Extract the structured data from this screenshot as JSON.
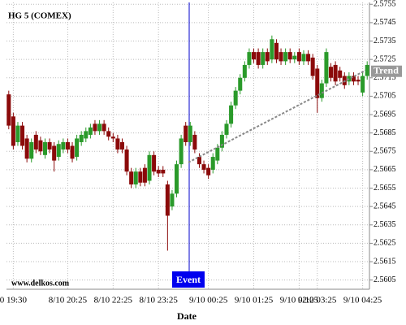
{
  "chart_data": {
    "type": "candlestick",
    "title": "HG 5 (COMEX)",
    "source": "www.delkos.com",
    "x_label": "Date",
    "event": {
      "label": "Event"
    },
    "trend": {
      "label": "Trend",
      "start": 2.5669,
      "end": 2.5719
    },
    "up_color": "#2a9a2a",
    "down_color": "#8b0a0a",
    "grid": true,
    "ylim": [
      2.56,
      2.5756
    ],
    "yticks": [
      2.5605,
      2.5615,
      2.5625,
      2.5635,
      2.5645,
      2.5655,
      2.5665,
      2.5675,
      2.5685,
      2.5695,
      2.5705,
      2.5715,
      2.5725,
      2.5735,
      2.5745,
      2.5755
    ],
    "categories": [
      null,
      "0 19:30",
      null,
      null,
      null,
      null,
      null,
      null,
      null,
      null,
      null,
      null,
      null,
      "8/10 20:25",
      null,
      null,
      null,
      null,
      null,
      null,
      null,
      null,
      null,
      "8/10 22:25",
      null,
      null,
      null,
      null,
      null,
      null,
      null,
      null,
      null,
      "8/10 23:25",
      null,
      null,
      null,
      null,
      null,
      null,
      null,
      null,
      null,
      null,
      "9/10 00:25",
      null,
      null,
      null,
      null,
      null,
      null,
      null,
      null,
      null,
      "9/10 01:25",
      null,
      null,
      null,
      null,
      null,
      null,
      null,
      null,
      null,
      "9/10 02:25",
      null,
      null,
      null,
      "9/10 03:25",
      null,
      null,
      null,
      null,
      null,
      null,
      null,
      null,
      null,
      "9/10 04:25",
      null
    ],
    "open": [
      2.5706,
      2.5694,
      2.568,
      2.5689,
      2.5682,
      2.5671,
      2.5684,
      2.5681,
      2.5673,
      2.568,
      2.5678,
      2.5672,
      2.5676,
      2.568,
      2.5678,
      2.5672,
      2.568,
      2.5682,
      2.5684,
      2.569,
      2.5686,
      2.569,
      2.5686,
      2.5683,
      2.5682,
      2.568,
      2.5676,
      2.5664,
      2.5657,
      2.5664,
      2.5666,
      2.5659,
      2.5673,
      2.5665,
      2.5665,
      2.5657,
      2.5645,
      2.5652,
      2.5668,
      2.5689,
      2.568,
      2.5684,
      2.5672,
      2.5668,
      2.5666,
      2.5665,
      2.567,
      2.5677,
      2.5684,
      2.569,
      2.57,
      2.5708,
      2.5715,
      2.5722,
      2.5729,
      2.5729,
      2.5722,
      2.5729,
      2.5725,
      2.5734,
      2.5729,
      2.5724,
      2.5729,
      2.5725,
      2.5729,
      2.5724,
      2.5728,
      2.5726,
      2.572,
      2.5704,
      2.5712,
      2.5721,
      2.5722,
      2.5719,
      2.5716,
      2.5713,
      2.5716,
      2.5714,
      2.5707,
      2.5716
    ],
    "high": [
      2.5708,
      2.5696,
      2.5691,
      2.5691,
      2.5684,
      2.5682,
      2.5686,
      2.5683,
      2.5682,
      2.5682,
      2.568,
      2.5681,
      2.5682,
      2.5682,
      2.568,
      2.5684,
      2.5686,
      2.5688,
      2.569,
      2.5692,
      2.5692,
      2.5692,
      2.5688,
      2.5685,
      2.5684,
      2.5682,
      2.5678,
      2.5666,
      2.5666,
      2.5666,
      2.5668,
      2.5675,
      2.5675,
      2.5667,
      2.5667,
      2.5659,
      2.5654,
      2.567,
      2.5684,
      2.5691,
      2.5691,
      2.5686,
      2.5674,
      2.567,
      2.5668,
      2.5674,
      2.5679,
      2.5686,
      2.5692,
      2.5702,
      2.571,
      2.5717,
      2.5724,
      2.5731,
      2.5731,
      2.5731,
      2.5731,
      2.5731,
      2.5738,
      2.5736,
      2.5731,
      2.5731,
      2.5731,
      2.5729,
      2.5731,
      2.573,
      2.573,
      2.5728,
      2.5722,
      2.5714,
      2.5731,
      2.5723,
      2.5724,
      2.5721,
      2.5718,
      2.5718,
      2.5718,
      2.5716,
      2.5718,
      2.5724
    ],
    "low": [
      2.5687,
      2.5676,
      2.5678,
      2.5676,
      2.5669,
      2.5669,
      2.5674,
      2.5673,
      2.5671,
      2.5674,
      2.5664,
      2.567,
      2.5674,
      2.5674,
      2.5669,
      2.567,
      2.5678,
      2.568,
      2.5682,
      2.5684,
      2.5684,
      2.5684,
      2.5681,
      2.568,
      2.5674,
      2.5674,
      2.5662,
      2.5655,
      2.5655,
      2.5656,
      2.5656,
      2.5657,
      2.5662,
      2.5661,
      2.5661,
      2.5621,
      2.5643,
      2.565,
      2.5666,
      2.5678,
      2.5678,
      2.5674,
      2.5666,
      2.5663,
      2.566,
      2.5663,
      2.5668,
      2.5675,
      2.5682,
      2.5688,
      2.5698,
      2.5706,
      2.5713,
      2.572,
      2.5723,
      2.572,
      2.572,
      2.5722,
      2.5723,
      2.5723,
      2.5722,
      2.5722,
      2.5723,
      2.5723,
      2.5722,
      2.5722,
      2.5722,
      2.5714,
      2.5696,
      2.5702,
      2.571,
      2.5713,
      2.5711,
      2.5713,
      2.5709,
      2.5711,
      2.5711,
      2.5711,
      2.5705,
      2.5714
    ],
    "close": [
      2.5689,
      2.5678,
      2.5689,
      2.5678,
      2.5671,
      2.568,
      2.5676,
      2.5675,
      2.568,
      2.5676,
      2.567,
      2.5679,
      2.568,
      2.5676,
      2.5671,
      2.5682,
      2.5684,
      2.5686,
      2.5688,
      2.5686,
      2.569,
      2.5686,
      2.5683,
      2.5682,
      2.5676,
      2.5676,
      2.5664,
      2.5657,
      2.5664,
      2.5658,
      2.5658,
      2.5673,
      2.5664,
      2.5663,
      2.5663,
      2.564,
      2.5652,
      2.5668,
      2.5682,
      2.568,
      2.5689,
      2.5676,
      2.5668,
      2.5665,
      2.5662,
      2.5672,
      2.5677,
      2.5684,
      2.569,
      2.57,
      2.5708,
      2.5715,
      2.5722,
      2.5729,
      2.5725,
      2.5722,
      2.5729,
      2.5724,
      2.5736,
      2.5725,
      2.5724,
      2.5729,
      2.5725,
      2.5727,
      2.5724,
      2.5728,
      2.5724,
      2.5716,
      2.5704,
      2.5712,
      2.5729,
      2.5715,
      2.5713,
      2.5715,
      2.5711,
      2.5716,
      2.5713,
      2.5713,
      2.5716,
      2.5722
    ]
  }
}
